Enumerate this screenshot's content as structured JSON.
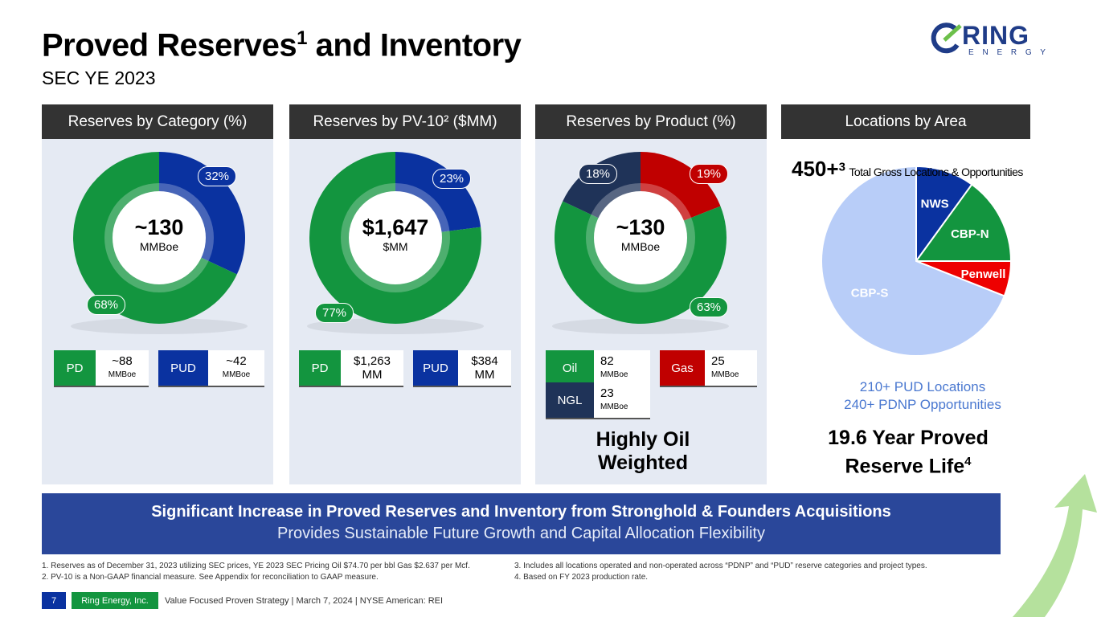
{
  "title": {
    "main": "Proved Reserves",
    "sup": "1",
    "rest": " and Inventory",
    "subtitle": "SEC YE 2023"
  },
  "logo": {
    "text": "RING",
    "sub": "E N E R G Y"
  },
  "headers": [
    "Reserves by Category (%)",
    "Reserves by PV-10² ($MM)",
    "Reserves by Product (%)",
    "Locations by Area"
  ],
  "colors": {
    "green": "#13953f",
    "blue": "#0a32a0",
    "red": "#c00000",
    "navy": "#1f3358",
    "light": "#b8cdf8",
    "penwell": "#ee0000"
  },
  "chart_data": [
    {
      "type": "pie",
      "variant": "donut",
      "center_value": "~130",
      "center_unit": "MMBoe",
      "slices": [
        {
          "name": "PUD",
          "value": 32,
          "label": "32%"
        },
        {
          "name": "PD",
          "value": 68,
          "label": "68%"
        }
      ]
    },
    {
      "type": "pie",
      "variant": "donut",
      "center_value": "$1,647",
      "center_unit": "$MM",
      "slices": [
        {
          "name": "PUD",
          "value": 23,
          "label": "23%"
        },
        {
          "name": "PD",
          "value": 77,
          "label": "77%"
        }
      ]
    },
    {
      "type": "pie",
      "variant": "donut",
      "center_value": "~130",
      "center_unit": "MMBoe",
      "slices": [
        {
          "name": "Gas",
          "value": 19,
          "label": "19%"
        },
        {
          "name": "Oil",
          "value": 63,
          "label": "63%"
        },
        {
          "name": "NGL",
          "value": 18,
          "label": "18%"
        }
      ]
    },
    {
      "type": "pie",
      "slices": [
        {
          "name": "NWS",
          "value": 10
        },
        {
          "name": "CBP-N",
          "value": 15
        },
        {
          "name": "Penwell",
          "value": 6
        },
        {
          "name": "CBP-S",
          "value": 69
        }
      ]
    }
  ],
  "legends": {
    "cat": [
      {
        "k": "PD",
        "v": "~88",
        "u": "MMBoe"
      },
      {
        "k": "PUD",
        "v": "~42",
        "u": "MMBoe"
      }
    ],
    "pv": [
      {
        "k": "PD",
        "v": "$1,263",
        "u": "MM"
      },
      {
        "k": "PUD",
        "v": "$384",
        "u": "MM"
      }
    ],
    "prod": [
      {
        "k": "Oil",
        "v": "82",
        "u": "MMBoe"
      },
      {
        "k": "Gas",
        "v": "25",
        "u": "MMBoe"
      },
      {
        "k": "NGL",
        "v": "23",
        "u": "MMBoe"
      }
    ]
  },
  "product_note": "Highly Oil Weighted",
  "locations": {
    "total": "450+",
    "sup": "3",
    "total_label": "Total Gross Locations & Opportunities",
    "pud": "210+ PUD Locations",
    "pdnp": "240+ PDNP Opportunities",
    "life": "19.6 Year Proved Reserve Life",
    "life_sup": "4"
  },
  "banner": {
    "line1": "Significant Increase in Proved Reserves and Inventory from Stronghold & Founders Acquisitions",
    "line2": "Provides Sustainable Future Growth and Capital Allocation Flexibility"
  },
  "footnotes": [
    "1.  Reserves as of December 31, 2023 utilizing SEC prices, YE 2023 SEC Pricing Oil $74.70 per bbl Gas $2.637 per Mcf.",
    "2.  PV-10 is a Non-GAAP financial measure. See Appendix for reconciliation to GAAP measure.",
    "3.  Includes all locations operated and non-operated across “PDNP” and “PUD” reserve categories and project types.",
    "4.  Based on FY 2023 production rate."
  ],
  "footer": {
    "page": "7",
    "company": "Ring Energy, Inc.",
    "text": "Value Focused Proven Strategy  | March 7, 2024 |  NYSE American: REI"
  }
}
